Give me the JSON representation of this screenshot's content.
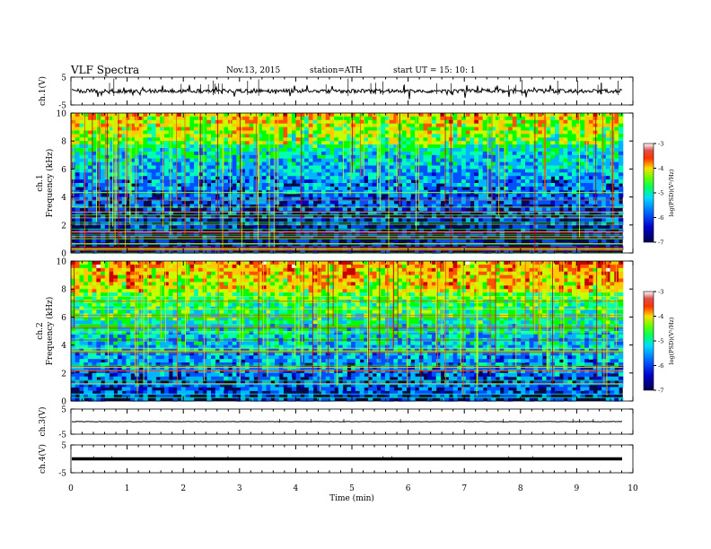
{
  "header": {
    "title": "VLF  Spectra",
    "date": "Nov.13, 2015",
    "station": "station=ATH",
    "start": "start  UT  =    15: 10: 1"
  },
  "chart_data": [
    {
      "type": "line",
      "name": "ch1-waveform",
      "ylabel": "ch.1(V)",
      "xlim": [
        0,
        10
      ],
      "ylim": [
        -5,
        5
      ],
      "yticks": [
        "5",
        "-5"
      ],
      "trace_level": 0.0,
      "data_end_min": 9.82
    },
    {
      "type": "heatmap",
      "name": "ch1-spectrogram",
      "ylabel": "ch.1\nFrequency (kHz)",
      "xlim": [
        0,
        10
      ],
      "ylim": [
        0,
        10
      ],
      "yticks": [
        "0",
        "2",
        "4",
        "6",
        "8",
        "10"
      ],
      "colorbar": {
        "label": "log(PSD)(V²/Hz)",
        "range": [
          -7,
          -3
        ],
        "ticks": [
          "-3",
          "-4",
          "-5",
          "-6",
          "-7"
        ]
      },
      "data_end_min": 9.82
    },
    {
      "type": "heatmap",
      "name": "ch2-spectrogram",
      "ylabel": "ch.2\nFrequency (kHz)",
      "xlim": [
        0,
        10
      ],
      "ylim": [
        0,
        10
      ],
      "yticks": [
        "0",
        "2",
        "4",
        "6",
        "8",
        "10"
      ],
      "colorbar": {
        "label": "log(PSD)(V²/Hz)",
        "range": [
          -7,
          -3
        ],
        "ticks": [
          "-3",
          "-4",
          "-5",
          "-6",
          "-7"
        ]
      },
      "data_end_min": 9.82
    },
    {
      "type": "line",
      "name": "ch3-waveform",
      "ylabel": "ch.3(V)",
      "xlim": [
        0,
        10
      ],
      "ylim": [
        -5,
        5
      ],
      "yticks": [
        "5",
        "-5"
      ],
      "trace_level": 0.0,
      "data_end_min": 9.82
    },
    {
      "type": "line",
      "name": "ch4-waveform",
      "ylabel": "ch.4(V)",
      "xlim": [
        0,
        10
      ],
      "ylim": [
        -5,
        5
      ],
      "yticks": [
        "5",
        "-5"
      ],
      "trace_level": 0.0,
      "data_end_min": 9.82
    }
  ],
  "x_axis": {
    "label": "Time  (min)",
    "ticks": [
      "0",
      "1",
      "2",
      "3",
      "4",
      "5",
      "6",
      "7",
      "8",
      "9",
      "10"
    ]
  },
  "colormap": [
    "#000050",
    "#0000c8",
    "#0050ff",
    "#00b4ff",
    "#00ffb4",
    "#00ff00",
    "#c8ff00",
    "#ffc800",
    "#ff5000",
    "#c80000",
    "#ffffff"
  ]
}
